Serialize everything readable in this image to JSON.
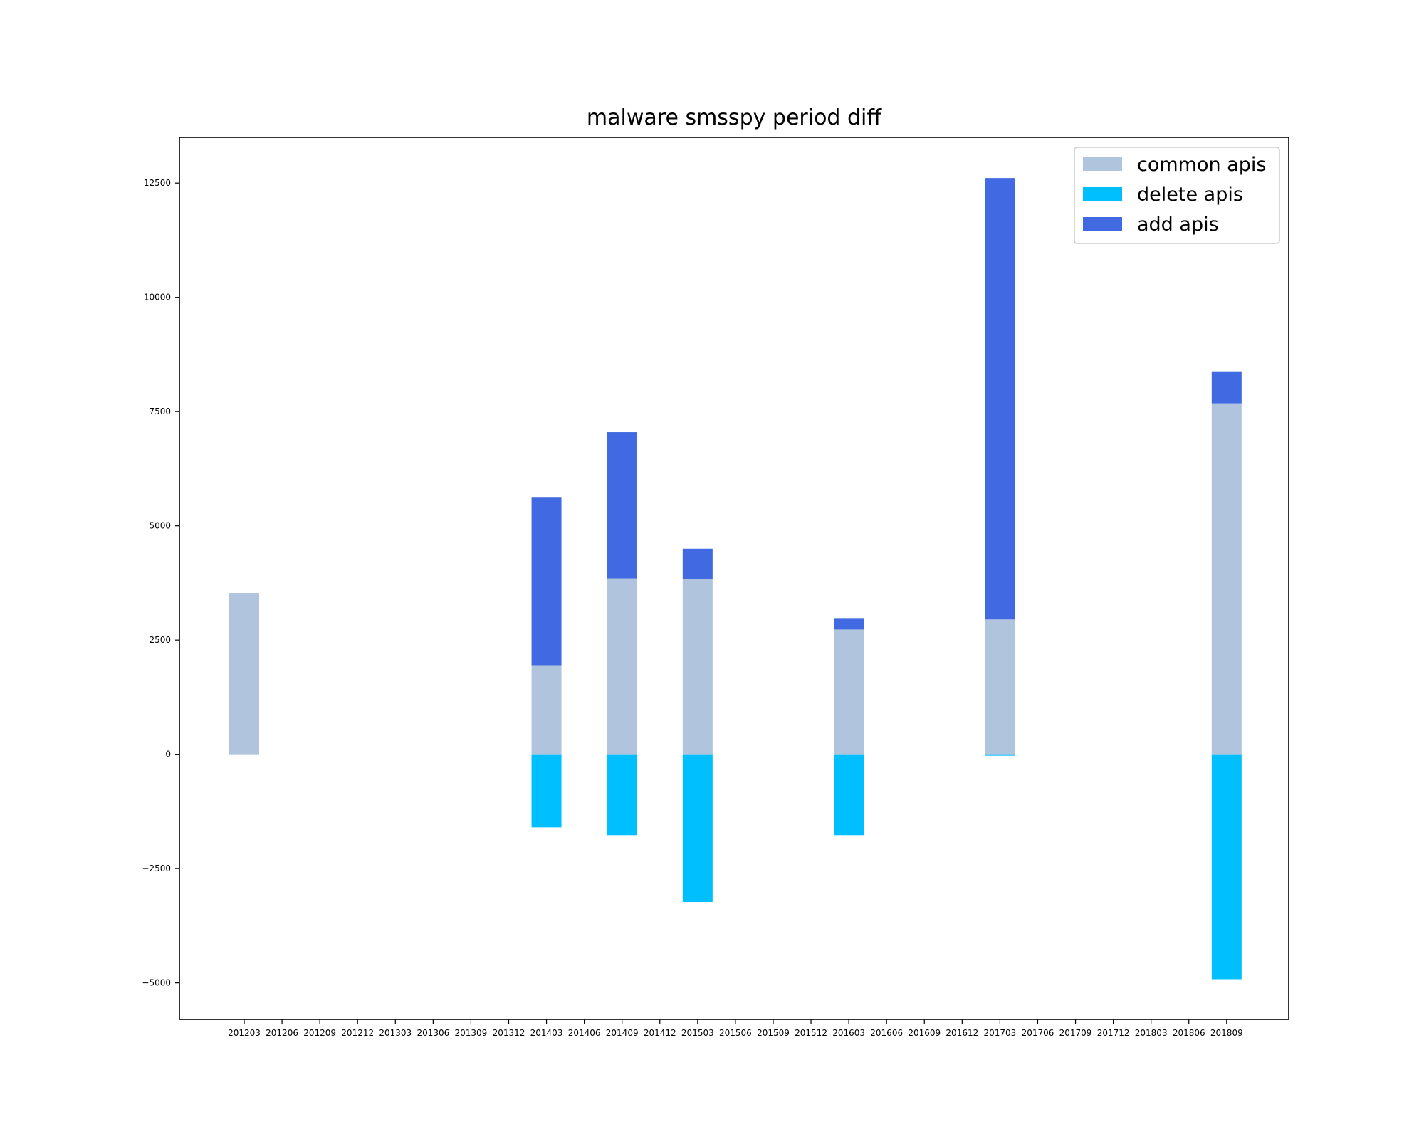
{
  "chart_data": {
    "type": "bar",
    "title": "malware smsspy period diff",
    "xlabel": "",
    "ylabel": "",
    "ylim": [
      -5800,
      13500
    ],
    "yticks": [
      12500,
      10000,
      7500,
      5000,
      2500,
      0,
      -2500,
      -5000
    ],
    "ytick_labels": [
      "12500",
      "10000",
      "7500",
      "5000",
      "2500",
      "0",
      "−2500",
      "−5000"
    ],
    "categories": [
      "201203",
      "201206",
      "201209",
      "201212",
      "201303",
      "201306",
      "201309",
      "201312",
      "201403",
      "201406",
      "201409",
      "201412",
      "201503",
      "201506",
      "201509",
      "201512",
      "201603",
      "201606",
      "201609",
      "201612",
      "201703",
      "201706",
      "201709",
      "201712",
      "201803",
      "201806",
      "201809"
    ],
    "stacking": "add apis stacked on top of common apis; delete apis plotted below zero",
    "series": [
      {
        "name": "common apis",
        "color": "#b0c4de",
        "values": [
          3530,
          0,
          0,
          0,
          0,
          0,
          0,
          0,
          1950,
          0,
          3850,
          0,
          3830,
          0,
          0,
          0,
          2730,
          0,
          0,
          0,
          2950,
          0,
          0,
          0,
          0,
          0,
          7680
        ]
      },
      {
        "name": "delete apis",
        "color": "#00bfff",
        "values": [
          0,
          0,
          0,
          0,
          0,
          0,
          0,
          0,
          -1600,
          0,
          -1770,
          0,
          -3230,
          0,
          0,
          0,
          -1770,
          0,
          0,
          0,
          -30,
          0,
          0,
          0,
          0,
          0,
          -4920
        ]
      },
      {
        "name": "add apis",
        "color": "#4169e1",
        "values": [
          0,
          0,
          0,
          0,
          0,
          0,
          0,
          0,
          3680,
          0,
          3200,
          0,
          670,
          0,
          0,
          0,
          250,
          0,
          0,
          0,
          9660,
          0,
          0,
          0,
          0,
          0,
          700
        ]
      }
    ],
    "grid": false,
    "legend_position": "top-right",
    "legend_order": [
      "common apis",
      "delete apis",
      "add apis"
    ]
  }
}
